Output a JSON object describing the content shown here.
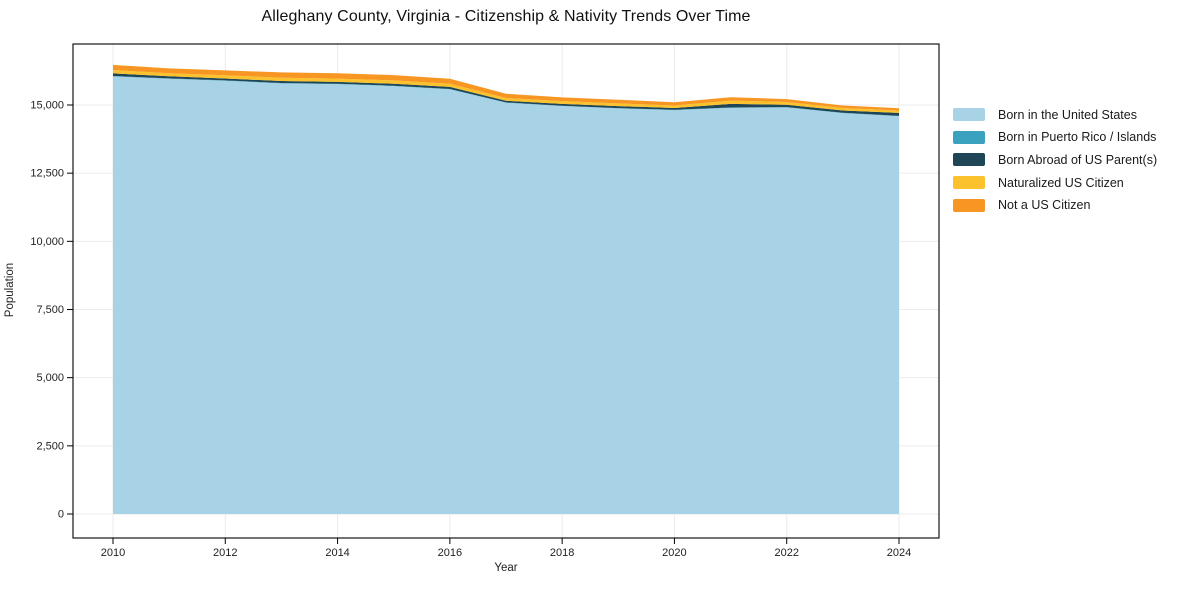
{
  "chart_data": {
    "type": "area",
    "stacked": true,
    "title": "Alleghany County, Virginia - Citizenship & Nativity Trends Over Time",
    "xlabel": "Year",
    "ylabel": "Population",
    "x": [
      2010,
      2011,
      2012,
      2013,
      2014,
      2015,
      2016,
      2017,
      2018,
      2019,
      2020,
      2021,
      2022,
      2023,
      2024
    ],
    "series": [
      {
        "name": "Born in the United States",
        "color": "#a8d3e6",
        "values": [
          16048,
          15962,
          15888,
          15794,
          15766,
          15694,
          15574,
          15086,
          14962,
          14876,
          14814,
          14898,
          14912,
          14704,
          14593
        ]
      },
      {
        "name": "Born in Puerto Rico / Islands",
        "color": "#3aa1bf",
        "values": [
          14,
          14,
          13,
          13,
          12,
          12,
          12,
          10,
          10,
          10,
          9,
          10,
          10,
          9,
          9
        ]
      },
      {
        "name": "Born Abroad of US Parent(s)",
        "color": "#1f4656",
        "values": [
          96,
          76,
          72,
          74,
          71,
          74,
          76,
          61,
          69,
          74,
          66,
          134,
          89,
          86,
          110
        ]
      },
      {
        "name": "Naturalized US Citizen",
        "color": "#fcc22d",
        "values": [
          126,
          111,
          119,
          121,
          119,
          121,
          118,
          99,
          101,
          99,
          91,
          119,
          99,
          91,
          86
        ]
      },
      {
        "name": "Not a US Citizen",
        "color": "#f79622",
        "values": [
          186,
          179,
          176,
          194,
          199,
          196,
          181,
          159,
          136,
          130,
          124,
          124,
          106,
          91,
          86
        ]
      }
    ],
    "x_ticks": [
      "2010",
      "2012",
      "2014",
      "2016",
      "2018",
      "2020",
      "2022",
      "2024"
    ],
    "y_ticks": [
      {
        "value": 0,
        "label": "0"
      },
      {
        "value": 2500,
        "label": "2,500"
      },
      {
        "value": 5000,
        "label": "5,000"
      },
      {
        "value": 7500,
        "label": "7,500"
      },
      {
        "value": 10000,
        "label": "10,000"
      },
      {
        "value": 12500,
        "label": "12,500"
      },
      {
        "value": 15000,
        "label": "15,000"
      }
    ],
    "ylim": [
      0,
      16500
    ],
    "grid": true,
    "legend_position": "right-outside"
  }
}
